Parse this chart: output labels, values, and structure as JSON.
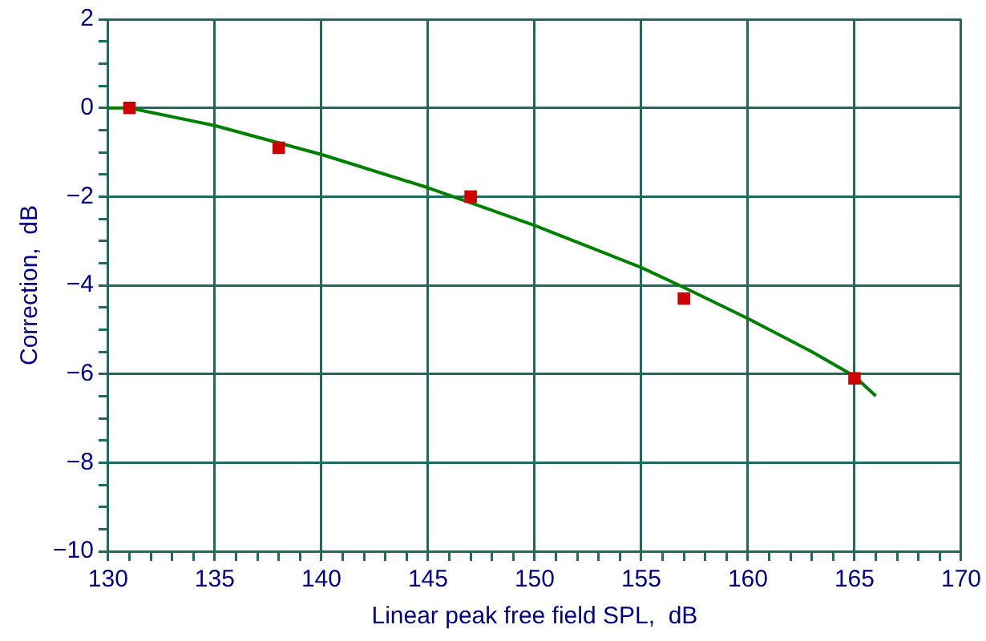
{
  "chart_data": {
    "type": "line",
    "xlabel": "Linear peak free field SPL,  dB",
    "ylabel": "Correction,  dB",
    "xlim": [
      130,
      170
    ],
    "ylim": [
      -10,
      2
    ],
    "xticks": [
      130,
      {
        "value": 131,
        "label": null
      },
      {
        "value": 132,
        "label": null
      },
      {
        "value": 133,
        "label": null
      },
      {
        "value": 134,
        "label": null
      },
      135,
      {
        "value": 136,
        "label": null
      },
      {
        "value": 137,
        "label": null
      },
      {
        "value": 138,
        "label": null
      },
      {
        "value": 139,
        "label": null
      },
      140,
      {
        "value": 141,
        "label": null
      },
      {
        "value": 142,
        "label": null
      },
      {
        "value": 143,
        "label": null
      },
      {
        "value": 144,
        "label": null
      },
      145,
      {
        "value": 146,
        "label": null
      },
      {
        "value": 147,
        "label": null
      },
      {
        "value": 148,
        "label": null
      },
      {
        "value": 149,
        "label": null
      },
      150,
      {
        "value": 151,
        "label": null
      },
      {
        "value": 152,
        "label": null
      },
      {
        "value": 153,
        "label": null
      },
      {
        "value": 154,
        "label": null
      },
      155,
      {
        "value": 156,
        "label": null
      },
      {
        "value": 157,
        "label": null
      },
      {
        "value": 158,
        "label": null
      },
      {
        "value": 159,
        "label": null
      },
      160,
      {
        "value": 161,
        "label": null
      },
      {
        "value": 162,
        "label": null
      },
      {
        "value": 163,
        "label": null
      },
      {
        "value": 164,
        "label": null
      },
      165,
      {
        "value": 166,
        "label": null
      },
      {
        "value": 167,
        "label": null
      },
      {
        "value": 168,
        "label": null
      },
      {
        "value": 169,
        "label": null
      },
      170
    ],
    "yticks": [
      {
        "value": -10,
        "label": "−10"
      },
      {
        "value": -9.5,
        "label": null
      },
      {
        "value": -9,
        "label": null
      },
      {
        "value": -8.5,
        "label": null
      },
      {
        "value": -8,
        "label": "−8"
      },
      {
        "value": -7.5,
        "label": null
      },
      {
        "value": -7,
        "label": null
      },
      {
        "value": -6.5,
        "label": null
      },
      {
        "value": -6,
        "label": "−6"
      },
      {
        "value": -5.5,
        "label": null
      },
      {
        "value": -5,
        "label": null
      },
      {
        "value": -4.5,
        "label": null
      },
      {
        "value": -4,
        "label": "−4"
      },
      {
        "value": -3.5,
        "label": null
      },
      {
        "value": -3,
        "label": null
      },
      {
        "value": -2.5,
        "label": null
      },
      {
        "value": -2,
        "label": "−2"
      },
      {
        "value": -1.5,
        "label": null
      },
      {
        "value": -1,
        "label": null
      },
      {
        "value": -0.5,
        "label": null
      },
      0,
      {
        "value": 0.5,
        "label": null
      },
      {
        "value": 1,
        "label": null
      },
      {
        "value": 1.5,
        "label": null
      },
      2
    ],
    "grid": true,
    "series": [
      {
        "color": "#008000",
        "marker": "none",
        "line_style": "solid",
        "x": [
          130,
          131,
          135,
          140,
          145,
          150,
          155,
          157,
          160,
          163,
          165,
          166
        ],
        "values": [
          0,
          0,
          -0.4,
          -1.05,
          -1.8,
          -2.65,
          -3.6,
          -4.05,
          -4.75,
          -5.5,
          -6.05,
          -6.5
        ]
      },
      {
        "type": "scatter",
        "color": "#cc0000",
        "marker": "square",
        "x": [
          131,
          138,
          147,
          157,
          165
        ],
        "values": [
          0,
          -0.9,
          -2.0,
          -4.3,
          -6.1
        ]
      }
    ]
  }
}
